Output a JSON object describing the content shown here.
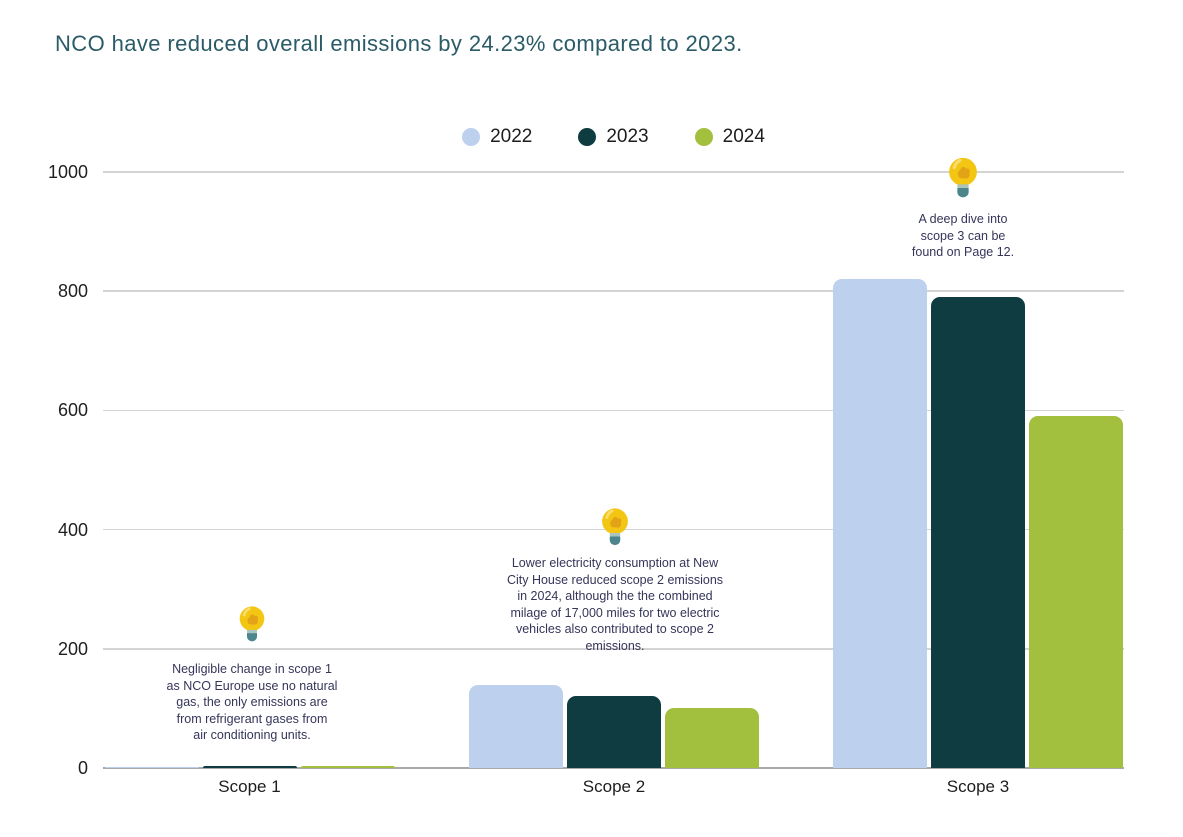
{
  "title": "NCO have reduced overall emissions by 24.23% compared to 2023.",
  "chart_data": {
    "type": "bar",
    "title": "NCO have reduced overall emissions by 24.23% compared to 2023.",
    "categories": [
      "Scope 1",
      "Scope 2",
      "Scope 3"
    ],
    "series": [
      {
        "name": "2022",
        "color": "#bdd0ee",
        "values": [
          2,
          140,
          820
        ]
      },
      {
        "name": "2023",
        "color": "#0e3c40",
        "values": [
          4,
          120,
          790
        ]
      },
      {
        "name": "2024",
        "color": "#a3bf3e",
        "values": [
          3,
          100,
          590
        ]
      }
    ],
    "xlabel": "",
    "ylabel": "",
    "ylim": [
      0,
      1000
    ],
    "yticks": [
      0,
      200,
      400,
      600,
      800,
      1000
    ],
    "grid": true,
    "legend_position": "top-center",
    "annotations": [
      {
        "category": "Scope 1",
        "icon": "lightbulb",
        "text": "Negligible change in scope 1\nas NCO Europe use no natural\ngas, the only emissions are\nfrom refrigerant gases from\nair conditioning units."
      },
      {
        "category": "Scope 2",
        "icon": "lightbulb",
        "text": "Lower electricity consumption at New\nCity House reduced scope 2 emissions\nin 2024, although the the combined\nmilage of 17,000 miles for two electric\nvehicles also contributed to scope 2\nemissions."
      },
      {
        "category": "Scope 3",
        "icon": "lightbulb",
        "text": "A deep dive into\nscope 3 can be\nfound on Page 12."
      }
    ]
  }
}
